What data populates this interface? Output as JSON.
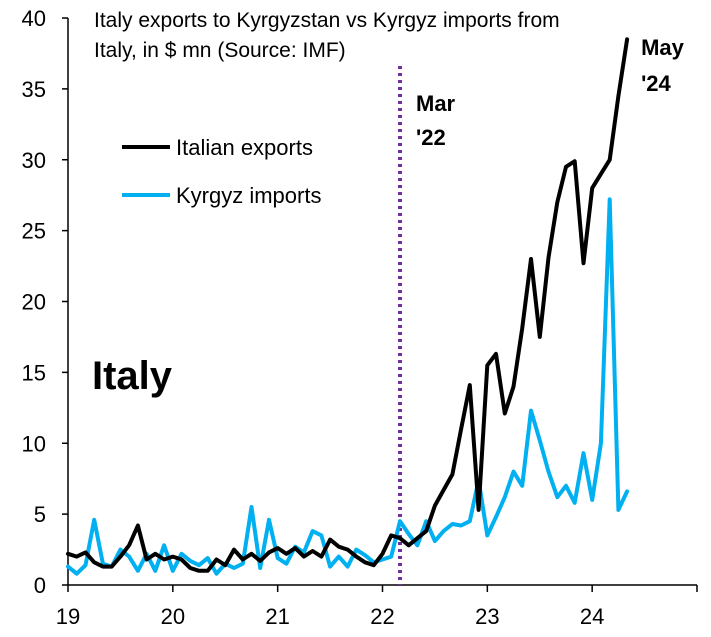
{
  "chart_data": {
    "type": "line",
    "title_lines": [
      "Italy exports to Kyrgyzstan vs Kyrgyz imports from",
      "Italy, in $ mn (Source: IMF)"
    ],
    "panel_label": "Italy",
    "xlabel": "",
    "ylabel": "",
    "x_tick_labels": [
      "19",
      "20",
      "21",
      "22",
      "23",
      "24"
    ],
    "x_tick_values": [
      2019,
      2020,
      2021,
      2022,
      2023,
      2024
    ],
    "xlim": [
      2019,
      2025
    ],
    "ylim": [
      0,
      40
    ],
    "y_ticks": [
      0,
      5,
      10,
      15,
      20,
      25,
      30,
      35,
      40
    ],
    "grid": false,
    "legend_position": "upper-left",
    "series": [
      {
        "name": "Italian exports",
        "color": "#000000",
        "x": [
          2019.0,
          2019.083,
          2019.167,
          2019.25,
          2019.333,
          2019.417,
          2019.5,
          2019.583,
          2019.667,
          2019.75,
          2019.833,
          2019.917,
          2020.0,
          2020.083,
          2020.167,
          2020.25,
          2020.333,
          2020.417,
          2020.5,
          2020.583,
          2020.667,
          2020.75,
          2020.833,
          2020.917,
          2021.0,
          2021.083,
          2021.167,
          2021.25,
          2021.333,
          2021.417,
          2021.5,
          2021.583,
          2021.667,
          2021.75,
          2021.833,
          2021.917,
          2022.0,
          2022.083,
          2022.167,
          2022.25,
          2022.333,
          2022.417,
          2022.5,
          2022.583,
          2022.667,
          2022.75,
          2022.833,
          2022.917,
          2023.0,
          2023.083,
          2023.167,
          2023.25,
          2023.333,
          2023.417,
          2023.5,
          2023.583,
          2023.667,
          2023.75,
          2023.833,
          2023.917,
          2024.0,
          2024.083,
          2024.167,
          2024.25,
          2024.333
        ],
        "values": [
          2.2,
          2.0,
          2.3,
          1.6,
          1.3,
          1.3,
          2.0,
          2.8,
          4.2,
          1.8,
          2.2,
          1.8,
          2.0,
          1.8,
          1.2,
          1.0,
          1.0,
          1.8,
          1.4,
          2.5,
          1.8,
          2.2,
          1.7,
          2.3,
          2.6,
          2.2,
          2.6,
          2.0,
          2.4,
          2.0,
          3.2,
          2.7,
          2.5,
          2.0,
          1.6,
          1.4,
          2.2,
          3.5,
          3.3,
          2.8,
          3.3,
          3.8,
          5.6,
          6.7,
          7.8,
          11.0,
          14.1,
          5.3,
          15.5,
          16.3,
          12.1,
          14.0,
          18.1,
          23.0,
          17.5,
          23.1,
          27.0,
          29.5,
          29.9,
          22.7,
          28.0,
          29.0,
          30.0,
          34.5,
          38.5
        ]
      },
      {
        "name": "Kyrgyz imports",
        "color": "#00b0f0",
        "x": [
          2019.0,
          2019.083,
          2019.167,
          2019.25,
          2019.333,
          2019.417,
          2019.5,
          2019.583,
          2019.667,
          2019.75,
          2019.833,
          2019.917,
          2020.0,
          2020.083,
          2020.167,
          2020.25,
          2020.333,
          2020.417,
          2020.5,
          2020.583,
          2020.667,
          2020.75,
          2020.833,
          2020.917,
          2021.0,
          2021.083,
          2021.167,
          2021.25,
          2021.333,
          2021.417,
          2021.5,
          2021.583,
          2021.667,
          2021.75,
          2021.833,
          2021.917,
          2022.0,
          2022.083,
          2022.167,
          2022.25,
          2022.333,
          2022.417,
          2022.5,
          2022.583,
          2022.667,
          2022.75,
          2022.833,
          2022.917,
          2023.0,
          2023.083,
          2023.167,
          2023.25,
          2023.333,
          2023.417,
          2023.5,
          2023.583,
          2023.667,
          2023.75,
          2023.833,
          2023.917,
          2024.0,
          2024.083,
          2024.167,
          2024.25,
          2024.333
        ],
        "values": [
          1.3,
          0.8,
          1.4,
          4.6,
          1.5,
          1.3,
          2.5,
          2.0,
          1.0,
          2.2,
          1.0,
          2.8,
          1.0,
          2.2,
          1.7,
          1.4,
          1.9,
          0.8,
          1.5,
          1.2,
          1.5,
          5.5,
          1.2,
          4.6,
          1.9,
          1.5,
          2.7,
          2.3,
          3.8,
          3.5,
          1.3,
          2.0,
          1.3,
          2.5,
          2.1,
          1.6,
          1.8,
          2.0,
          4.5,
          3.6,
          2.8,
          4.5,
          3.1,
          3.8,
          4.3,
          4.2,
          4.5,
          7.4,
          3.5,
          4.8,
          6.2,
          8.0,
          7.0,
          12.3,
          10.2,
          8.0,
          6.2,
          7.0,
          5.8,
          9.3,
          6.0,
          10.0,
          27.2,
          5.3,
          6.6
        ]
      }
    ],
    "annotations": [
      {
        "type": "vline",
        "x": 2022.167,
        "color": "#7030a0",
        "style": "dotted",
        "label_lines": [
          "Mar",
          "'22"
        ]
      },
      {
        "type": "text",
        "x": 2024.333,
        "y": 38.5,
        "label_lines": [
          "May",
          "'24"
        ]
      }
    ]
  }
}
